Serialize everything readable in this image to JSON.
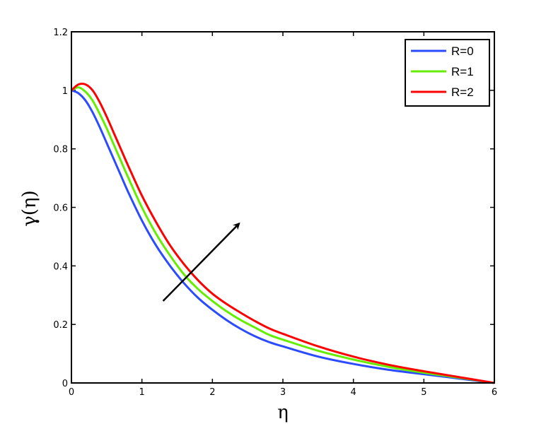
{
  "chart_data": {
    "type": "line",
    "xlabel": "η",
    "ylabel": "γ(η)",
    "xlim": [
      0,
      6
    ],
    "ylim": [
      0,
      1.2
    ],
    "xticks": [
      "0",
      "1",
      "2",
      "3",
      "4",
      "5",
      "6"
    ],
    "yticks": [
      "0",
      "0.2",
      "0.4",
      "0.6",
      "0.8",
      "1",
      "1.2"
    ],
    "grid": false,
    "legend_position": "top-right",
    "x": [
      0,
      0.1,
      0.2,
      0.3,
      0.4,
      0.5,
      0.6,
      0.7,
      0.8,
      1.0,
      1.2,
      1.4,
      1.6,
      1.8,
      2.0,
      2.2,
      2.4,
      2.6,
      2.8,
      3.0,
      3.5,
      4.0,
      4.5,
      5.0,
      5.5,
      6.0
    ],
    "series": [
      {
        "name": "R=0",
        "color": "#2b4bff",
        "values": [
          1.0,
          0.99,
          0.965,
          0.925,
          0.875,
          0.82,
          0.765,
          0.71,
          0.655,
          0.555,
          0.47,
          0.4,
          0.34,
          0.29,
          0.25,
          0.215,
          0.185,
          0.16,
          0.14,
          0.125,
          0.09,
          0.065,
          0.045,
          0.03,
          0.015,
          0.0
        ]
      },
      {
        "name": "R=1",
        "color": "#66ee00",
        "values": [
          1.0,
          1.01,
          0.995,
          0.965,
          0.92,
          0.87,
          0.815,
          0.76,
          0.705,
          0.6,
          0.51,
          0.435,
          0.37,
          0.32,
          0.28,
          0.245,
          0.215,
          0.19,
          0.165,
          0.148,
          0.11,
          0.08,
          0.055,
          0.035,
          0.018,
          0.0
        ]
      },
      {
        "name": "R=2",
        "color": "#ff0000",
        "values": [
          1.0,
          1.02,
          1.02,
          1.0,
          0.96,
          0.91,
          0.855,
          0.8,
          0.745,
          0.64,
          0.55,
          0.47,
          0.405,
          0.35,
          0.305,
          0.27,
          0.24,
          0.212,
          0.187,
          0.168,
          0.125,
          0.09,
          0.062,
          0.04,
          0.02,
          0.0
        ]
      }
    ],
    "annotations": [
      {
        "type": "arrow",
        "from": [
          1.3,
          0.28
        ],
        "to": [
          2.38,
          0.545
        ],
        "color": "#000000"
      }
    ]
  }
}
